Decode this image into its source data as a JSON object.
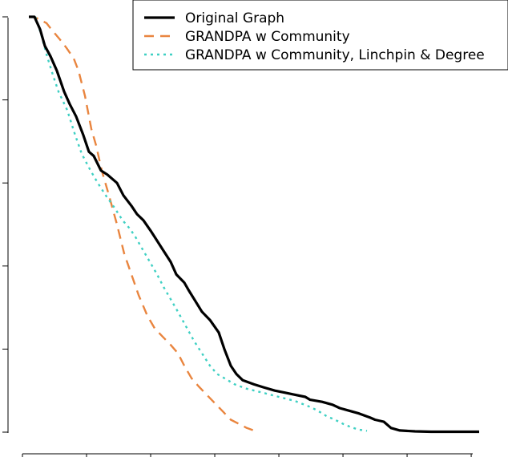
{
  "chart_data": {
    "type": "line",
    "title": "",
    "xlabel": "",
    "ylabel": "",
    "xlim": [
      0,
      1.0
    ],
    "ylim": [
      0,
      1.0
    ],
    "legend_position": "top-right",
    "grid": false,
    "series": [
      {
        "name": "Original Graph",
        "color": "#000000",
        "dash": "solid",
        "points": [
          [
            0.0127,
            1.0
          ],
          [
            0.0238,
            1.0
          ],
          [
            0.035,
            0.97
          ],
          [
            0.0445,
            0.93
          ],
          [
            0.0556,
            0.905
          ],
          [
            0.0683,
            0.87
          ],
          [
            0.0825,
            0.82
          ],
          [
            0.0937,
            0.79
          ],
          [
            0.1063,
            0.76
          ],
          [
            0.1206,
            0.715
          ],
          [
            0.1317,
            0.675
          ],
          [
            0.1413,
            0.665
          ],
          [
            0.1556,
            0.63
          ],
          [
            0.1683,
            0.62
          ],
          [
            0.1873,
            0.6
          ],
          [
            0.2,
            0.57
          ],
          [
            0.2159,
            0.545
          ],
          [
            0.227,
            0.525
          ],
          [
            0.2397,
            0.51
          ],
          [
            0.254,
            0.485
          ],
          [
            0.2619,
            0.47
          ],
          [
            0.2778,
            0.44
          ],
          [
            0.2937,
            0.41
          ],
          [
            0.3048,
            0.38
          ],
          [
            0.3206,
            0.36
          ],
          [
            0.3302,
            0.34
          ],
          [
            0.3429,
            0.315
          ],
          [
            0.3556,
            0.29
          ],
          [
            0.3714,
            0.27
          ],
          [
            0.3889,
            0.24
          ],
          [
            0.4,
            0.2
          ],
          [
            0.4127,
            0.16
          ],
          [
            0.4238,
            0.14
          ],
          [
            0.4365,
            0.125
          ],
          [
            0.4587,
            0.115
          ],
          [
            0.4778,
            0.108
          ],
          [
            0.5,
            0.1
          ],
          [
            0.5206,
            0.095
          ],
          [
            0.5365,
            0.091
          ],
          [
            0.5603,
            0.085
          ],
          [
            0.5698,
            0.078
          ],
          [
            0.5937,
            0.073
          ],
          [
            0.6143,
            0.066
          ],
          [
            0.6286,
            0.058
          ],
          [
            0.646,
            0.052
          ],
          [
            0.6667,
            0.045
          ],
          [
            0.6889,
            0.035
          ],
          [
            0.6984,
            0.03
          ],
          [
            0.7159,
            0.025
          ],
          [
            0.7302,
            0.01
          ],
          [
            0.7476,
            0.004
          ],
          [
            0.7778,
            0.002
          ],
          [
            0.8095,
            0.001
          ],
          [
            0.9048,
            0.001
          ]
        ]
      },
      {
        "name": "GRANDPA w Community",
        "color": "#e9853f",
        "dash": "dashed",
        "points": [
          [
            0.0127,
            1.0
          ],
          [
            0.0222,
            1.0
          ],
          [
            0.0317,
            0.995
          ],
          [
            0.0476,
            0.985
          ],
          [
            0.0571,
            0.97
          ],
          [
            0.0746,
            0.945
          ],
          [
            0.0873,
            0.925
          ],
          [
            0.1016,
            0.9
          ],
          [
            0.1111,
            0.87
          ],
          [
            0.1238,
            0.81
          ],
          [
            0.1365,
            0.73
          ],
          [
            0.146,
            0.69
          ],
          [
            0.1571,
            0.63
          ],
          [
            0.1714,
            0.57
          ],
          [
            0.1873,
            0.5
          ],
          [
            0.2016,
            0.43
          ],
          [
            0.2159,
            0.38
          ],
          [
            0.2302,
            0.33
          ],
          [
            0.2476,
            0.28
          ],
          [
            0.2619,
            0.25
          ],
          [
            0.2778,
            0.23
          ],
          [
            0.2937,
            0.21
          ],
          [
            0.3079,
            0.19
          ],
          [
            0.3206,
            0.16
          ],
          [
            0.3349,
            0.13
          ],
          [
            0.3492,
            0.11
          ],
          [
            0.3651,
            0.09
          ],
          [
            0.381,
            0.07
          ],
          [
            0.3968,
            0.05
          ],
          [
            0.4127,
            0.03
          ],
          [
            0.4286,
            0.02
          ],
          [
            0.4444,
            0.01
          ],
          [
            0.4603,
            0.003
          ]
        ]
      },
      {
        "name": "GRANDPA w Community, Linchpin & Degree",
        "color": "#3fd0c3",
        "dash": "dotted",
        "points": [
          [
            0.0127,
            1.0
          ],
          [
            0.0254,
            1.0
          ],
          [
            0.0365,
            0.96
          ],
          [
            0.0476,
            0.91
          ],
          [
            0.0603,
            0.86
          ],
          [
            0.0714,
            0.82
          ],
          [
            0.0889,
            0.775
          ],
          [
            0.1032,
            0.72
          ],
          [
            0.1175,
            0.67
          ],
          [
            0.1349,
            0.63
          ],
          [
            0.1492,
            0.6
          ],
          [
            0.1651,
            0.57
          ],
          [
            0.1825,
            0.54
          ],
          [
            0.1984,
            0.51
          ],
          [
            0.2127,
            0.49
          ],
          [
            0.2238,
            0.47
          ],
          [
            0.2381,
            0.44
          ],
          [
            0.2524,
            0.41
          ],
          [
            0.2667,
            0.38
          ],
          [
            0.2794,
            0.35
          ],
          [
            0.2937,
            0.32
          ],
          [
            0.3079,
            0.29
          ],
          [
            0.3238,
            0.255
          ],
          [
            0.3397,
            0.22
          ],
          [
            0.3556,
            0.19
          ],
          [
            0.3714,
            0.16
          ],
          [
            0.3857,
            0.14
          ],
          [
            0.4,
            0.13
          ],
          [
            0.4206,
            0.115
          ],
          [
            0.4429,
            0.105
          ],
          [
            0.4762,
            0.095
          ],
          [
            0.5079,
            0.085
          ],
          [
            0.5397,
            0.075
          ],
          [
            0.5714,
            0.06
          ],
          [
            0.5873,
            0.05
          ],
          [
            0.6032,
            0.038
          ],
          [
            0.619,
            0.03
          ],
          [
            0.6349,
            0.02
          ],
          [
            0.6508,
            0.012
          ],
          [
            0.6667,
            0.006
          ],
          [
            0.6825,
            0.003
          ]
        ]
      }
    ]
  }
}
